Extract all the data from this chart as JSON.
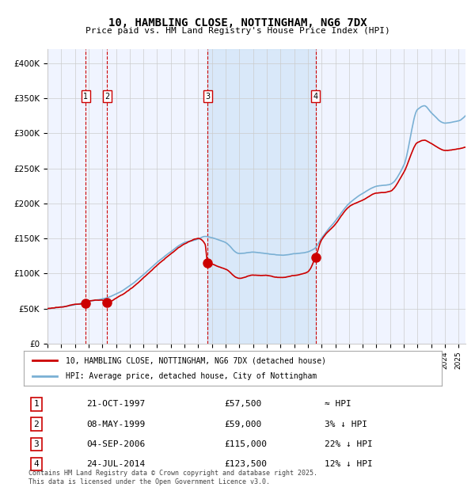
{
  "title_line1": "10, HAMBLING CLOSE, NOTTINGHAM, NG6 7DX",
  "title_line2": "Price paid vs. HM Land Registry's House Price Index (HPI)",
  "ylabel": "",
  "xlabel": "",
  "background_color": "#ffffff",
  "plot_bg_color": "#f0f4ff",
  "grid_color": "#cccccc",
  "hpi_line_color": "#7ab0d4",
  "price_line_color": "#cc0000",
  "sale_marker_color": "#cc0000",
  "vline_color": "#cc0000",
  "shade_color": "#d0e4f7",
  "ylim": [
    0,
    420000
  ],
  "yticks": [
    0,
    50000,
    100000,
    150000,
    200000,
    250000,
    300000,
    350000,
    400000
  ],
  "ytick_labels": [
    "£0",
    "£50K",
    "£100K",
    "£150K",
    "£200K",
    "£250K",
    "£300K",
    "£350K",
    "£400K"
  ],
  "sales": [
    {
      "num": 1,
      "date": "21-OCT-1997",
      "year": 1997.8,
      "price": 57500,
      "pct": "≈ HPI"
    },
    {
      "num": 2,
      "date": "08-MAY-1999",
      "year": 1999.35,
      "price": 59000,
      "pct": "3% ↓ HPI"
    },
    {
      "num": 3,
      "date": "04-SEP-2006",
      "year": 2006.67,
      "price": 115000,
      "pct": "22% ↓ HPI"
    },
    {
      "num": 4,
      "date": "24-JUL-2014",
      "year": 2014.56,
      "price": 123500,
      "pct": "12% ↓ HPI"
    }
  ],
  "legend_price_label": "10, HAMBLING CLOSE, NOTTINGHAM, NG6 7DX (detached house)",
  "legend_hpi_label": "HPI: Average price, detached house, City of Nottingham",
  "footer": "Contains HM Land Registry data © Crown copyright and database right 2025.\nThis data is licensed under the Open Government Licence v3.0.",
  "xmin": 1995.0,
  "xmax": 2025.5
}
